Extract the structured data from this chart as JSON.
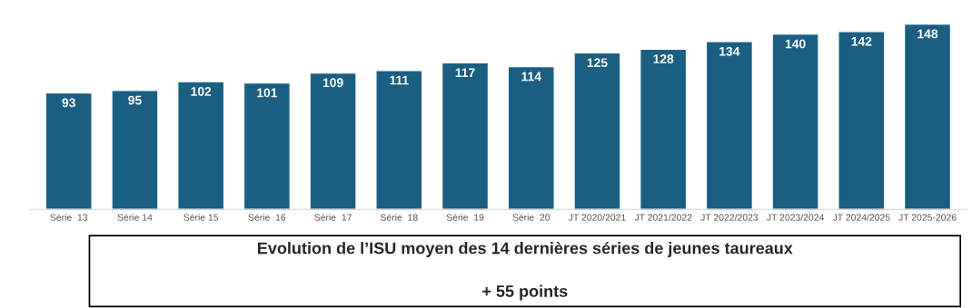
{
  "chart_data": {
    "type": "bar",
    "title": "Evolution de l’ISU moyen des 14 dernières séries de jeunes taureaux",
    "annotations": [
      "+ 55 points"
    ],
    "categories": [
      "Série  13",
      "Série 14",
      "Série 15",
      "Série  16",
      "Série  17",
      "Série  18",
      "Série  19",
      "Série  20",
      "JT 2020/2021",
      "JT 2021/2022",
      "JT 2022/2023",
      "JT 2023/2024",
      "JT 2024/2025",
      "JT 2025-2026"
    ],
    "values": [
      93,
      95,
      102,
      101,
      109,
      111,
      117,
      114,
      125,
      128,
      134,
      140,
      142,
      148
    ],
    "color": "#1a5f82",
    "data_labels": true,
    "tick_labels": "x",
    "grid": false,
    "legend": false
  }
}
